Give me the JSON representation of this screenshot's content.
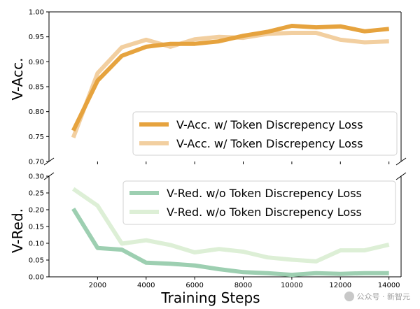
{
  "chart_data": {
    "type": "line",
    "xlabel": "Training Steps",
    "x_ticks": [
      2000,
      4000,
      6000,
      8000,
      10000,
      12000,
      14000
    ],
    "xlim": [
      0,
      14500
    ],
    "top_panel": {
      "ylabel": "V-Acc.",
      "ylim": [
        0.7,
        1.0
      ],
      "y_ticks": [
        "0.70",
        "0.75",
        "0.80",
        "0.85",
        "0.90",
        "0.95",
        "1.00"
      ],
      "legend_position": "bottom-right",
      "series": [
        {
          "name": "V-Acc. w/ Token Discrepency Loss",
          "color": "#E6A33E",
          "x": [
            1000,
            2000,
            3000,
            4000,
            5000,
            6000,
            7000,
            8000,
            9000,
            10000,
            11000,
            12000,
            13000,
            14000
          ],
          "values": [
            0.762,
            0.862,
            0.912,
            0.93,
            0.936,
            0.936,
            0.941,
            0.952,
            0.96,
            0.972,
            0.969,
            0.971,
            0.961,
            0.966
          ]
        },
        {
          "name": "V-Acc. w/ Token Discrepency Loss",
          "color": "#F2CFA0",
          "x": [
            1000,
            2000,
            3000,
            4000,
            5000,
            6000,
            7000,
            8000,
            9000,
            10000,
            11000,
            12000,
            13000,
            14000
          ],
          "values": [
            0.748,
            0.877,
            0.929,
            0.944,
            0.93,
            0.945,
            0.95,
            0.948,
            0.956,
            0.958,
            0.958,
            0.944,
            0.939,
            0.941
          ]
        }
      ]
    },
    "bottom_panel": {
      "ylabel": "V-Red.",
      "ylim": [
        0.0,
        0.3
      ],
      "y_ticks": [
        "0.00",
        "0.05",
        "0.10",
        "0.15",
        "0.20",
        "0.25",
        "0.30"
      ],
      "legend_position": "top-right",
      "series": [
        {
          "name": "V-Red. w/o Token Discrepency Loss",
          "color": "#9DCFB1",
          "x": [
            1000,
            2000,
            3000,
            4000,
            5000,
            6000,
            7000,
            8000,
            9000,
            10000,
            11000,
            12000,
            13000,
            14000
          ],
          "values": [
            0.203,
            0.086,
            0.081,
            0.042,
            0.039,
            0.034,
            0.023,
            0.014,
            0.011,
            0.006,
            0.011,
            0.009,
            0.011,
            0.011
          ]
        },
        {
          "name": "V-Red. w/o Token Discrepency Loss",
          "color": "#DDEFD6",
          "x": [
            1000,
            2000,
            3000,
            4000,
            5000,
            6000,
            7000,
            8000,
            9000,
            10000,
            11000,
            12000,
            13000,
            14000
          ],
          "values": [
            0.262,
            0.212,
            0.099,
            0.109,
            0.095,
            0.073,
            0.083,
            0.075,
            0.058,
            0.051,
            0.046,
            0.079,
            0.079,
            0.096
          ]
        }
      ]
    }
  },
  "watermark": {
    "text": "公众号 · 新智元",
    "icon": "wechat-icon"
  }
}
